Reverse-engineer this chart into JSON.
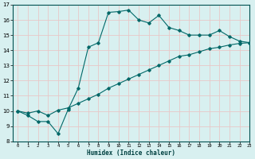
{
  "xlabel": "Humidex (Indice chaleur)",
  "bg_color": "#d8f0f0",
  "grid_color": "#e8c8c8",
  "line_color": "#006868",
  "line1_x": [
    0,
    1,
    2,
    3,
    4,
    5,
    6,
    7,
    8,
    9,
    10,
    11,
    12,
    13,
    14,
    15,
    16,
    17,
    18,
    19,
    20,
    21,
    22,
    23
  ],
  "line1_y": [
    10.0,
    9.7,
    9.3,
    9.3,
    8.5,
    10.1,
    11.5,
    14.2,
    14.5,
    16.5,
    16.55,
    16.65,
    16.0,
    15.8,
    16.3,
    15.5,
    15.3,
    15.0,
    15.0,
    15.0,
    15.3,
    14.9,
    14.6,
    14.5
  ],
  "line2_x": [
    0,
    1,
    2,
    3,
    4,
    5,
    6,
    7,
    8,
    9,
    10,
    11,
    12,
    13,
    14,
    15,
    16,
    17,
    18,
    19,
    20,
    21,
    22,
    23
  ],
  "line2_y": [
    10.0,
    9.85,
    10.0,
    9.7,
    10.05,
    10.2,
    10.5,
    10.8,
    11.1,
    11.5,
    11.8,
    12.1,
    12.4,
    12.7,
    13.0,
    13.3,
    13.6,
    13.7,
    13.9,
    14.1,
    14.2,
    14.35,
    14.45,
    14.5
  ],
  "xlim": [
    -0.5,
    23
  ],
  "ylim": [
    8,
    17
  ],
  "xticks": [
    0,
    1,
    2,
    3,
    4,
    5,
    6,
    7,
    8,
    9,
    10,
    11,
    12,
    13,
    14,
    15,
    16,
    17,
    18,
    19,
    20,
    21,
    22,
    23
  ],
  "yticks": [
    8,
    9,
    10,
    11,
    12,
    13,
    14,
    15,
    16,
    17
  ]
}
